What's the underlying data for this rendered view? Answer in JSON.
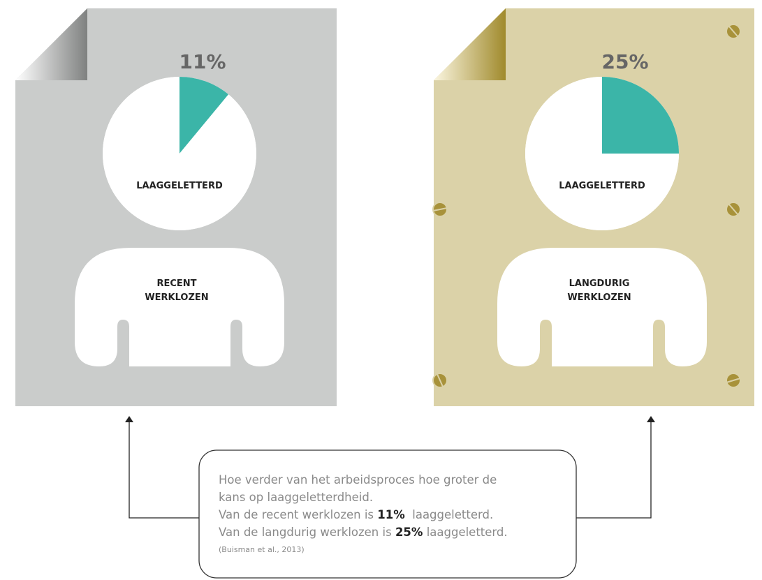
{
  "chart_data": [
    {
      "type": "pie",
      "categories": [
        "LAAGGELETTERD",
        null
      ],
      "values": [
        11,
        89
      ],
      "value_labels": [
        "11%",
        null
      ],
      "colors": [
        "#3bb5a8",
        "#ffffff"
      ],
      "group": [
        "RECENT",
        "WERKLOZEN"
      ]
    },
    {
      "type": "pie",
      "categories": [
        "LAAGGELETTERD",
        null
      ],
      "values": [
        25,
        75
      ],
      "value_labels": [
        "25%",
        null
      ],
      "colors": [
        "#3bb5a8",
        "#ffffff"
      ],
      "group": [
        "LANGDURIG",
        "WERKLOZEN"
      ]
    }
  ],
  "note": {
    "lines": [
      [
        {
          "text": "Hoe verder van het arbeidsproces hoe groter de"
        }
      ],
      [
        {
          "text": "kans op laaggeletterdheid."
        }
      ],
      [
        {
          "text": "Van de recent werklozen is "
        },
        {
          "text": "11%",
          "bold": true
        },
        {
          "text": "  laaggeletterd."
        }
      ],
      [
        {
          "text": "Van de langdurig werklozen is "
        },
        {
          "text": "25%",
          "bold": true
        },
        {
          "text": " laaggeletterd."
        }
      ]
    ],
    "source": "(Buisman et al., 2013)"
  }
}
